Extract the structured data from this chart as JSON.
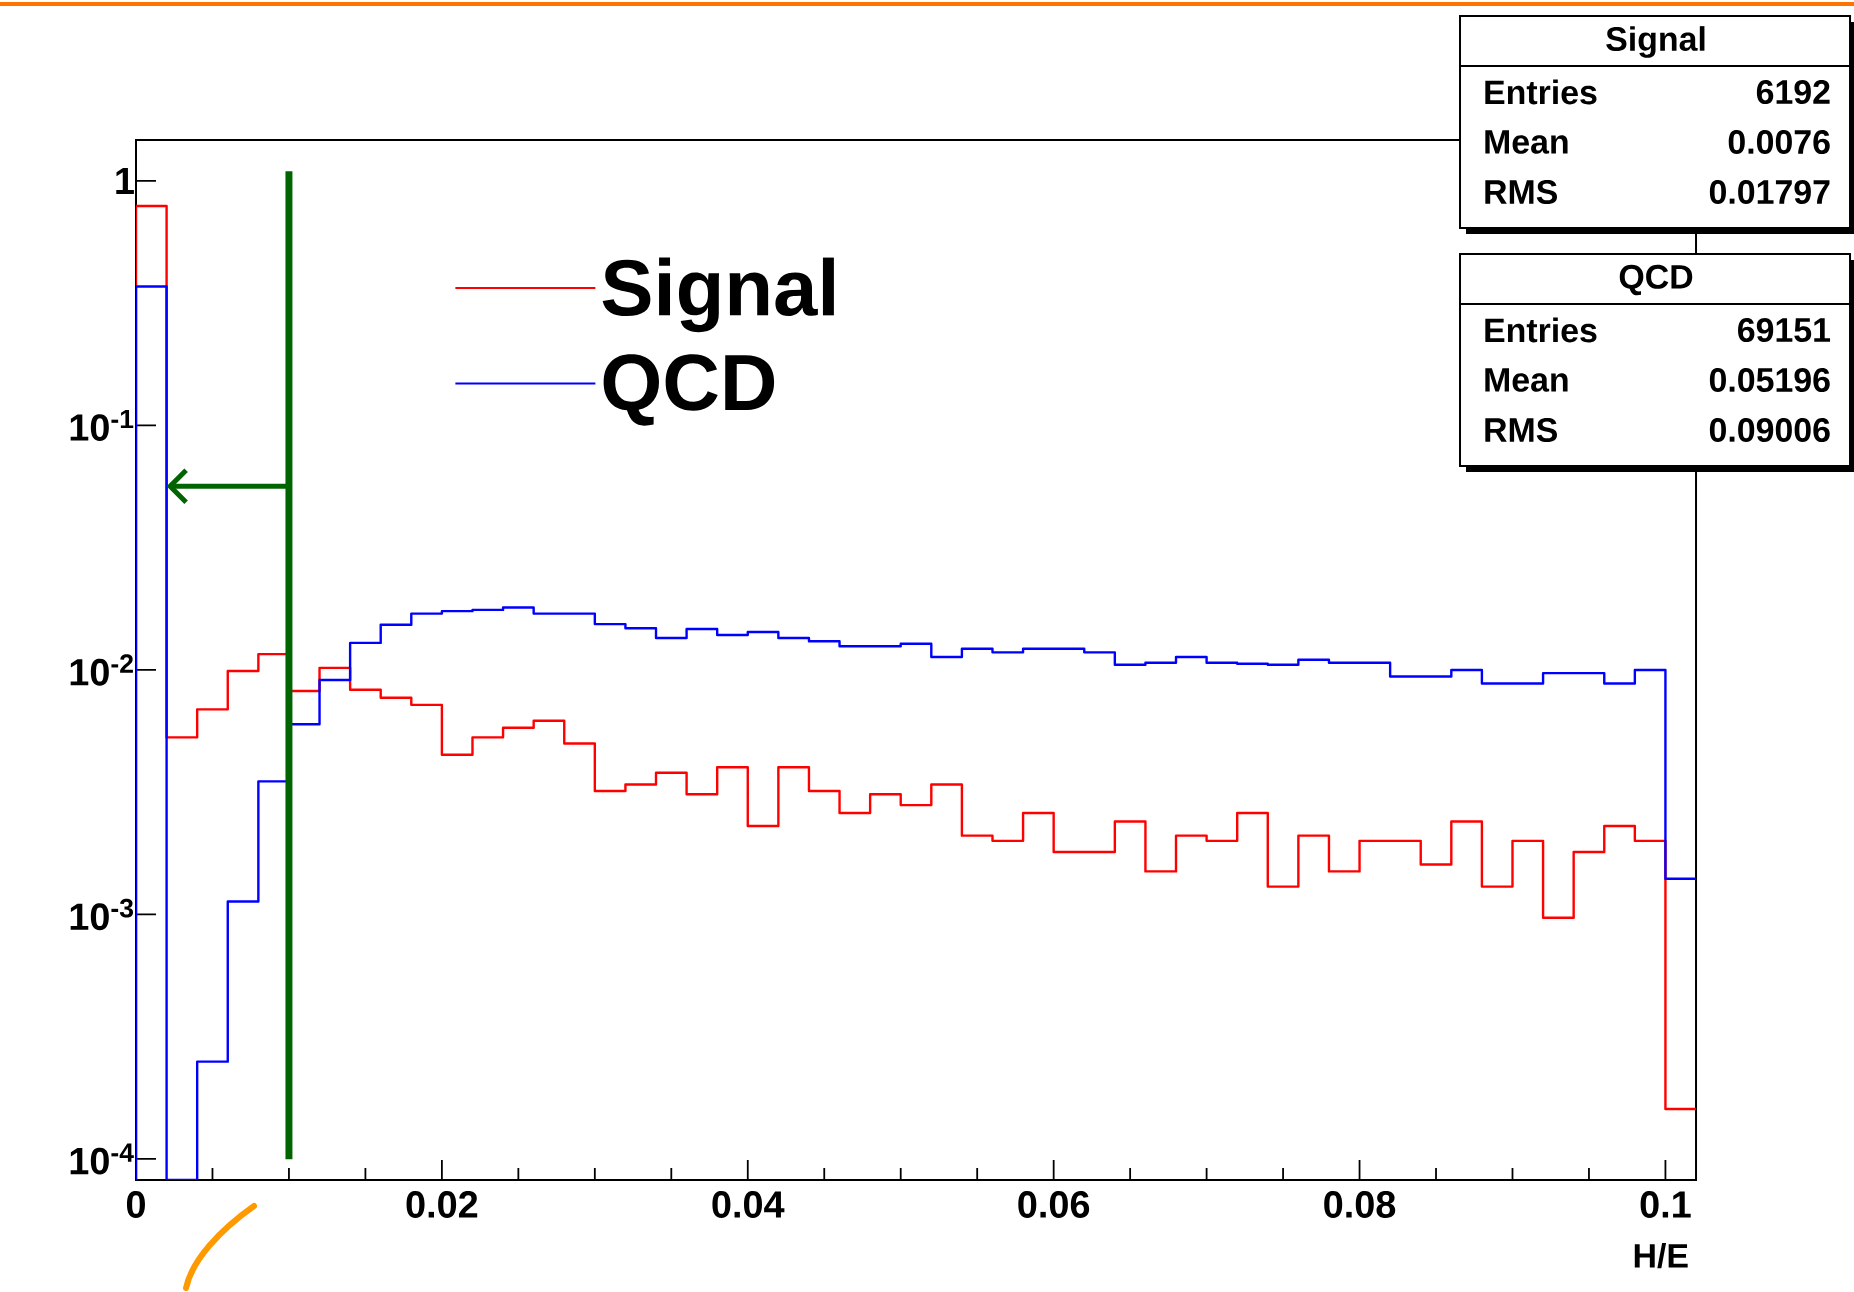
{
  "chart_data": {
    "type": "histogram",
    "xlabel": "H/E",
    "log": "y",
    "legend": "top left",
    "bins": [
      0,
      0.002,
      0.004,
      0.006,
      0.008,
      0.01,
      0.012,
      0.014,
      0.016,
      0.018,
      0.02,
      0.022,
      0.024,
      0.026,
      0.028,
      0.03,
      0.032,
      0.034,
      0.036,
      0.038,
      0.04,
      0.042,
      0.044,
      0.046,
      0.048,
      0.05,
      0.052,
      0.054,
      0.056,
      0.058,
      0.06,
      0.062,
      0.064,
      0.066,
      0.068,
      0.07,
      0.072,
      0.074,
      0.076,
      0.078,
      0.08,
      0.082,
      0.084,
      0.086,
      0.088,
      0.09,
      0.092,
      0.094,
      0.096,
      0.098,
      0.1,
      0.102
    ],
    "series": [
      {
        "name": "Signal",
        "color": "#ff0000",
        "values": [
          0.79,
          0.0053,
          0.0069,
          0.0099,
          0.0116,
          0.0082,
          0.0102,
          0.0083,
          0.0077,
          0.0072,
          0.0045,
          0.0053,
          0.0058,
          0.0062,
          0.005,
          0.0032,
          0.0034,
          0.0038,
          0.0031,
          0.004,
          0.0023,
          0.004,
          0.0032,
          0.0026,
          0.0031,
          0.0028,
          0.0034,
          0.0021,
          0.002,
          0.0026,
          0.0018,
          0.0018,
          0.0024,
          0.0015,
          0.0021,
          0.002,
          0.0026,
          0.0013,
          0.0021,
          0.0015,
          0.002,
          0.002,
          0.0016,
          0.0024,
          0.0013,
          0.002,
          0.00097,
          0.0018,
          0.0023,
          0.002,
          0.00016
        ]
      },
      {
        "name": "QCD",
        "color": "#0000ff",
        "values": [
          0.37,
          null,
          0.00025,
          0.00113,
          0.0035,
          0.006,
          0.0091,
          0.0129,
          0.0153,
          0.017,
          0.0174,
          0.0176,
          0.018,
          0.017,
          0.017,
          0.0154,
          0.0148,
          0.0135,
          0.0147,
          0.0139,
          0.0143,
          0.0135,
          0.0131,
          0.0125,
          0.0125,
          0.0128,
          0.0113,
          0.0122,
          0.0118,
          0.0122,
          0.0122,
          0.0118,
          0.0105,
          0.0107,
          0.0113,
          0.0107,
          0.0106,
          0.0105,
          0.011,
          0.0107,
          0.0107,
          0.0094,
          0.0094,
          0.01,
          0.0088,
          0.0088,
          0.0097,
          0.0097,
          0.0088,
          0.01,
          0.0014
        ]
      }
    ],
    "xlim": [
      0,
      0.102
    ],
    "ylim": [
      8.2e-05,
      1.47
    ],
    "xticks": [
      0,
      0.02,
      0.04,
      0.06,
      0.08,
      0.1
    ],
    "yticks": [
      1,
      {
        "value": 0.1,
        "label": "10$^{-1}$"
      },
      {
        "value": 0.01,
        "label": "10$^{-2}$"
      },
      {
        "value": 0.001,
        "label": "10$^{-3}$"
      },
      {
        "value": 0.0001,
        "label": "10$^{-4}$"
      }
    ],
    "ref_lines": [
      {
        "axis": "x",
        "value": 0.01,
        "color": "#006400"
      }
    ],
    "annotations": [
      "Signal",
      "Entries",
      "6192",
      "Mean",
      "0.0076",
      "RMS",
      "0.01797",
      "QCD",
      "Entries",
      "69151",
      "Mean",
      "0.05196",
      "RMS",
      "0.09006"
    ]
  }
}
